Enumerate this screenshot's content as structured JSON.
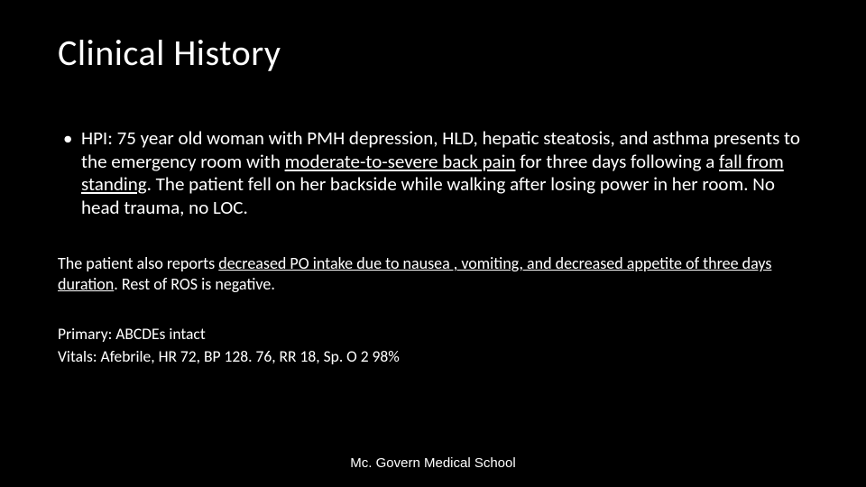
{
  "slide": {
    "title": "Clinical History",
    "background_color": "#000000",
    "text_color": "#ffffff",
    "title_fontsize": 40,
    "body_fontsize": 21,
    "sub_fontsize": 18,
    "bullet": {
      "marker": "•",
      "runs": [
        {
          "t": "HPI: 75 year old woman with PMH depression, HLD, hepatic steatosis, and asthma presents to the emergency room with ",
          "u": false
        },
        {
          "t": "moderate-to-severe back pain",
          "u": true
        },
        {
          "t": " for three days following a ",
          "u": false
        },
        {
          "t": "fall from standing",
          "u": true
        },
        {
          "t": ". The patient fell on her backside while walking after losing power in her room.  No head trauma, no LOC.",
          "u": false
        }
      ]
    },
    "para2_runs": [
      {
        "t": "The patient also reports ",
        "u": false
      },
      {
        "t": "decreased PO intake due to nausea , vomiting, and decreased appetite of three days duration",
        "u": true
      },
      {
        "t": ". Rest of ROS is negative.",
        "u": false
      }
    ],
    "para3_line1": "Primary: ABCDEs intact",
    "para3_line2": "Vitals: Afebrile, HR 72, BP 128. 76, RR 18, Sp. O 2 98%",
    "footer": "Mc. Govern Medical School"
  }
}
